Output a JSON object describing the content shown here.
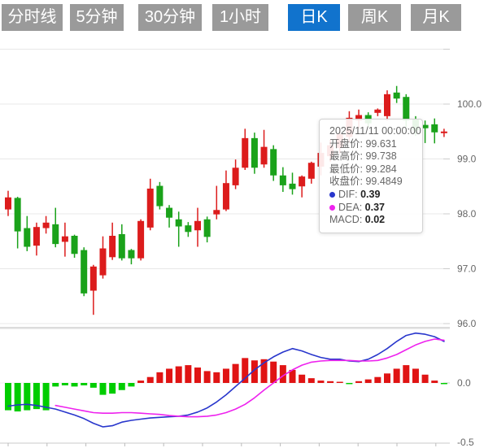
{
  "toolbar": {
    "tabs": [
      {
        "label": "分时线",
        "active": false
      },
      {
        "label": "5分钟",
        "active": false
      },
      {
        "label": "30分钟",
        "active": false
      },
      {
        "label": "1小时",
        "active": false
      },
      {
        "label": "日K",
        "active": true
      },
      {
        "label": "周K",
        "active": false
      },
      {
        "label": "月K",
        "active": false
      }
    ],
    "colors": {
      "inactive_bg": "#9a9a9a",
      "active_bg": "#1173cd",
      "text": "#ffffff"
    }
  },
  "tooltip": {
    "date": "2025/11/11 00:00:00",
    "rows": [
      {
        "label": "开盘价",
        "value": "99.631",
        "bold": false
      },
      {
        "label": "最高价",
        "value": "99.738",
        "bold": false
      },
      {
        "label": "最低价",
        "value": "99.284",
        "bold": false
      },
      {
        "label": "收盘价",
        "value": "99.4849",
        "bold": false
      },
      {
        "label": "DIF",
        "value": "0.39",
        "bold": true,
        "marker": "#2836cc"
      },
      {
        "label": "DEA",
        "value": "0.37",
        "bold": true,
        "marker": "#ee22ee"
      },
      {
        "label": "MACD",
        "value": "0.02",
        "bold": true
      }
    ]
  },
  "chart_data": {
    "type": "candlestick",
    "title": "",
    "legend_position": "none",
    "grid_on": true,
    "price_axis": {
      "side": "right",
      "range": [
        95.95,
        101.0
      ],
      "gridlines": [
        101.0,
        100.0,
        99.0,
        98.0,
        97.0,
        96.0
      ],
      "labels": [
        {
          "text": "100.0",
          "value": 100.0
        },
        {
          "text": "99.0",
          "value": 99.0
        },
        {
          "text": "98.0",
          "value": 98.0
        },
        {
          "text": "97.0",
          "value": 97.0
        },
        {
          "text": "96.0",
          "value": 96.0
        }
      ]
    },
    "macd_axis": {
      "side": "right",
      "range": [
        -0.5,
        0.5
      ],
      "labels": [
        {
          "text": "0.0",
          "value": 0.0
        },
        {
          "text": "-0.5",
          "value": -0.5
        }
      ]
    },
    "hovered_point": {
      "date": "2025/11/11 00:00:00",
      "open": 99.631,
      "high": 99.738,
      "low": 99.284,
      "close": 99.4849,
      "dif": 0.39,
      "dea": 0.37,
      "macd": 0.02,
      "index": 45
    },
    "candles_ohlc": [
      [
        98.08,
        98.42,
        97.96,
        98.3
      ],
      [
        98.29,
        98.31,
        97.37,
        97.68
      ],
      [
        97.74,
        97.96,
        97.32,
        97.4
      ],
      [
        97.42,
        97.84,
        97.24,
        97.76
      ],
      [
        97.74,
        97.96,
        97.64,
        97.84
      ],
      [
        97.81,
        98.11,
        97.39,
        97.45
      ],
      [
        97.49,
        97.84,
        97.22,
        97.59
      ],
      [
        97.6,
        97.62,
        97.2,
        97.27
      ],
      [
        97.34,
        97.39,
        96.5,
        96.55
      ],
      [
        96.6,
        97.07,
        96.16,
        97.04
      ],
      [
        96.88,
        97.59,
        96.82,
        97.37
      ],
      [
        97.21,
        97.84,
        97.16,
        97.6
      ],
      [
        97.63,
        97.81,
        97.15,
        97.19
      ],
      [
        97.34,
        97.36,
        97.08,
        97.19
      ],
      [
        97.19,
        97.9,
        97.15,
        97.87
      ],
      [
        97.75,
        98.64,
        97.7,
        98.46
      ],
      [
        98.51,
        98.58,
        98.08,
        98.14
      ],
      [
        98.11,
        98.16,
        97.75,
        97.93
      ],
      [
        97.9,
        98.04,
        97.4,
        97.77
      ],
      [
        97.79,
        97.85,
        97.58,
        97.67
      ],
      [
        97.7,
        98.11,
        97.4,
        97.87
      ],
      [
        97.9,
        97.95,
        97.48,
        97.58
      ],
      [
        97.99,
        98.51,
        97.9,
        98.07
      ],
      [
        98.08,
        98.79,
        98.05,
        98.56
      ],
      [
        98.52,
        98.99,
        98.45,
        98.84
      ],
      [
        98.84,
        99.55,
        98.8,
        99.38
      ],
      [
        99.38,
        99.48,
        98.73,
        98.84
      ],
      [
        98.9,
        99.53,
        98.84,
        99.22
      ],
      [
        99.18,
        99.25,
        98.6,
        98.7
      ],
      [
        98.7,
        98.85,
        98.4,
        98.52
      ],
      [
        98.55,
        98.75,
        98.35,
        98.45
      ],
      [
        98.5,
        98.7,
        98.3,
        98.68
      ],
      [
        98.64,
        98.95,
        98.55,
        98.93
      ],
      [
        98.86,
        99.3,
        98.7,
        99.11
      ],
      [
        99.05,
        99.35,
        98.95,
        99.25
      ],
      [
        99.2,
        99.55,
        99.1,
        99.45
      ],
      [
        99.4,
        99.87,
        99.3,
        99.75
      ],
      [
        99.7,
        99.9,
        99.55,
        99.8
      ],
      [
        99.8,
        99.85,
        99.58,
        99.65
      ],
      [
        99.84,
        99.92,
        99.78,
        99.9
      ],
      [
        99.78,
        100.25,
        99.7,
        100.18
      ],
      [
        100.21,
        100.33,
        100.02,
        100.1
      ],
      [
        100.13,
        100.18,
        99.58,
        99.7
      ],
      [
        99.72,
        99.78,
        99.42,
        99.52
      ],
      [
        99.62,
        99.7,
        99.29,
        99.56
      ],
      [
        99.631,
        99.738,
        99.284,
        99.4849
      ],
      [
        99.47,
        99.55,
        99.4,
        99.5
      ]
    ],
    "macd_histogram": [
      -0.23,
      -0.24,
      -0.23,
      -0.22,
      -0.23,
      -0.03,
      -0.02,
      -0.03,
      -0.02,
      -0.04,
      -0.1,
      -0.09,
      -0.06,
      -0.03,
      0.02,
      0.05,
      0.09,
      0.12,
      0.14,
      0.15,
      0.13,
      0.1,
      0.09,
      0.12,
      0.16,
      0.21,
      0.19,
      0.2,
      0.18,
      0.15,
      0.11,
      0.07,
      0.04,
      0.02,
      0.015,
      0.01,
      -0.01,
      0.015,
      0.03,
      0.05,
      0.08,
      0.12,
      0.15,
      0.12,
      0.07,
      0.02,
      -0.01
    ],
    "dif_line": [
      -0.195,
      -0.185,
      -0.18,
      -0.19,
      -0.205,
      -0.22,
      -0.245,
      -0.27,
      -0.3,
      -0.34,
      -0.37,
      -0.36,
      -0.33,
      -0.315,
      -0.305,
      -0.295,
      -0.29,
      -0.285,
      -0.28,
      -0.27,
      -0.245,
      -0.21,
      -0.16,
      -0.1,
      -0.03,
      0.04,
      0.11,
      0.17,
      0.22,
      0.26,
      0.29,
      0.27,
      0.24,
      0.215,
      0.2,
      0.2,
      0.185,
      0.18,
      0.2,
      0.24,
      0.29,
      0.35,
      0.4,
      0.42,
      0.41,
      0.39,
      0.35
    ],
    "dea_line": [
      null,
      null,
      null,
      null,
      null,
      -0.19,
      -0.205,
      -0.22,
      -0.235,
      -0.25,
      -0.255,
      -0.255,
      -0.25,
      -0.25,
      -0.255,
      -0.26,
      -0.265,
      -0.275,
      -0.28,
      -0.285,
      -0.285,
      -0.28,
      -0.27,
      -0.25,
      -0.22,
      -0.18,
      -0.125,
      -0.06,
      0.0,
      0.06,
      0.11,
      0.15,
      0.175,
      0.185,
      0.19,
      0.19,
      0.19,
      0.185,
      0.185,
      0.19,
      0.21,
      0.24,
      0.28,
      0.32,
      0.35,
      0.37,
      0.36
    ],
    "colors": {
      "up": "#dc1c1c",
      "down": "#1aa21a",
      "hist_positive": "#e01414",
      "hist_negative": "#00cd00",
      "dif": "#2836cc",
      "dea": "#ee22ee",
      "grid": "#e8e8e8",
      "axis_text": "#666666"
    }
  }
}
